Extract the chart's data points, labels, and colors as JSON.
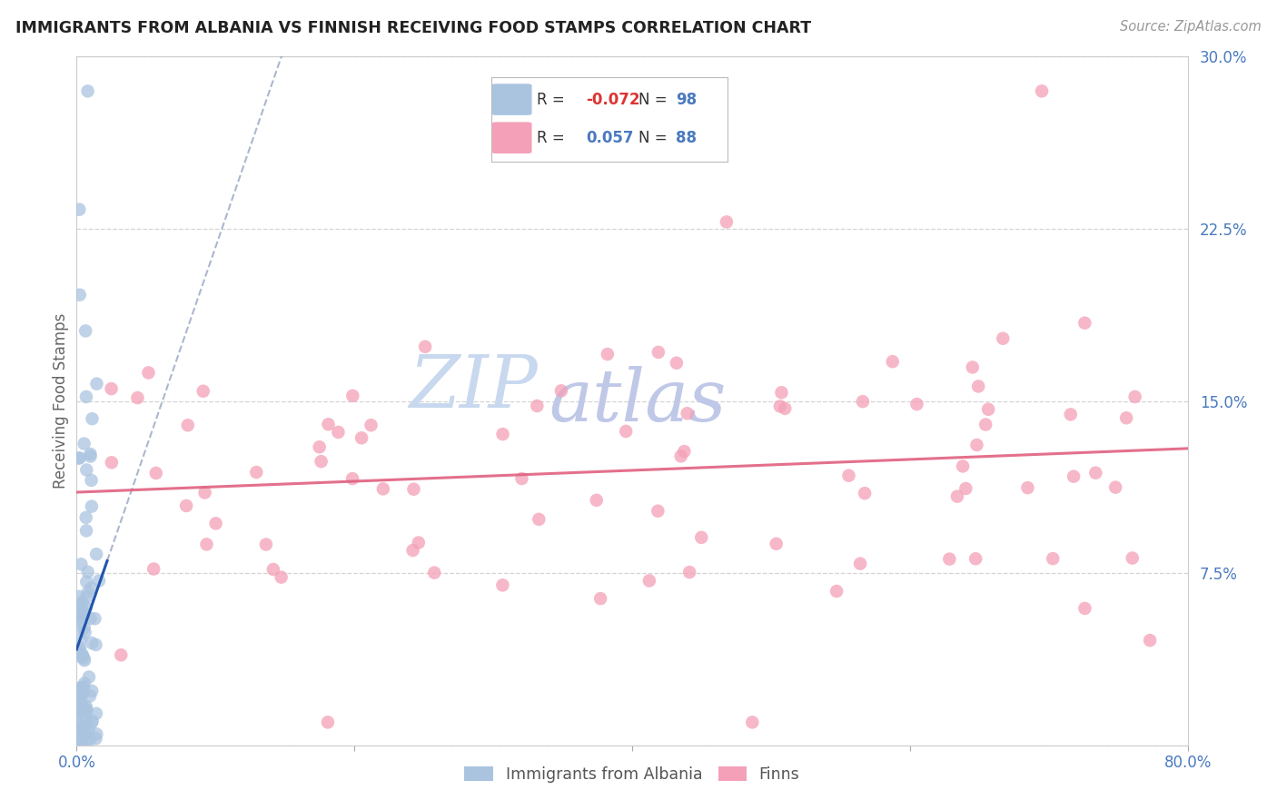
{
  "title": "IMMIGRANTS FROM ALBANIA VS FINNISH RECEIVING FOOD STAMPS CORRELATION CHART",
  "source": "Source: ZipAtlas.com",
  "ylabel": "Receiving Food Stamps",
  "xlim": [
    0.0,
    0.8
  ],
  "ylim": [
    0.0,
    0.3
  ],
  "yticks": [
    0.0,
    0.075,
    0.15,
    0.225,
    0.3
  ],
  "ytick_labels": [
    "",
    "7.5%",
    "15.0%",
    "22.5%",
    "30.0%"
  ],
  "xticks": [
    0.0,
    0.2,
    0.4,
    0.6,
    0.8
  ],
  "xtick_labels": [
    "0.0%",
    "",
    "",
    "",
    "80.0%"
  ],
  "legend_albania_r": "-0.072",
  "legend_albania_n": "98",
  "legend_finns_r": "0.057",
  "legend_finns_n": "88",
  "albania_color": "#aac4e0",
  "finns_color": "#f4a0b8",
  "albania_line_color": "#2255aa",
  "finns_line_color": "#e06080",
  "watermark_zip_color": "#c8d8ee",
  "watermark_atlas_color": "#c0c8e8",
  "title_color": "#222222",
  "axis_label_color": "#4a7abf",
  "background_color": "#ffffff",
  "grid_color": "#d0d0d0",
  "albania_seed": 42,
  "finns_seed": 99
}
